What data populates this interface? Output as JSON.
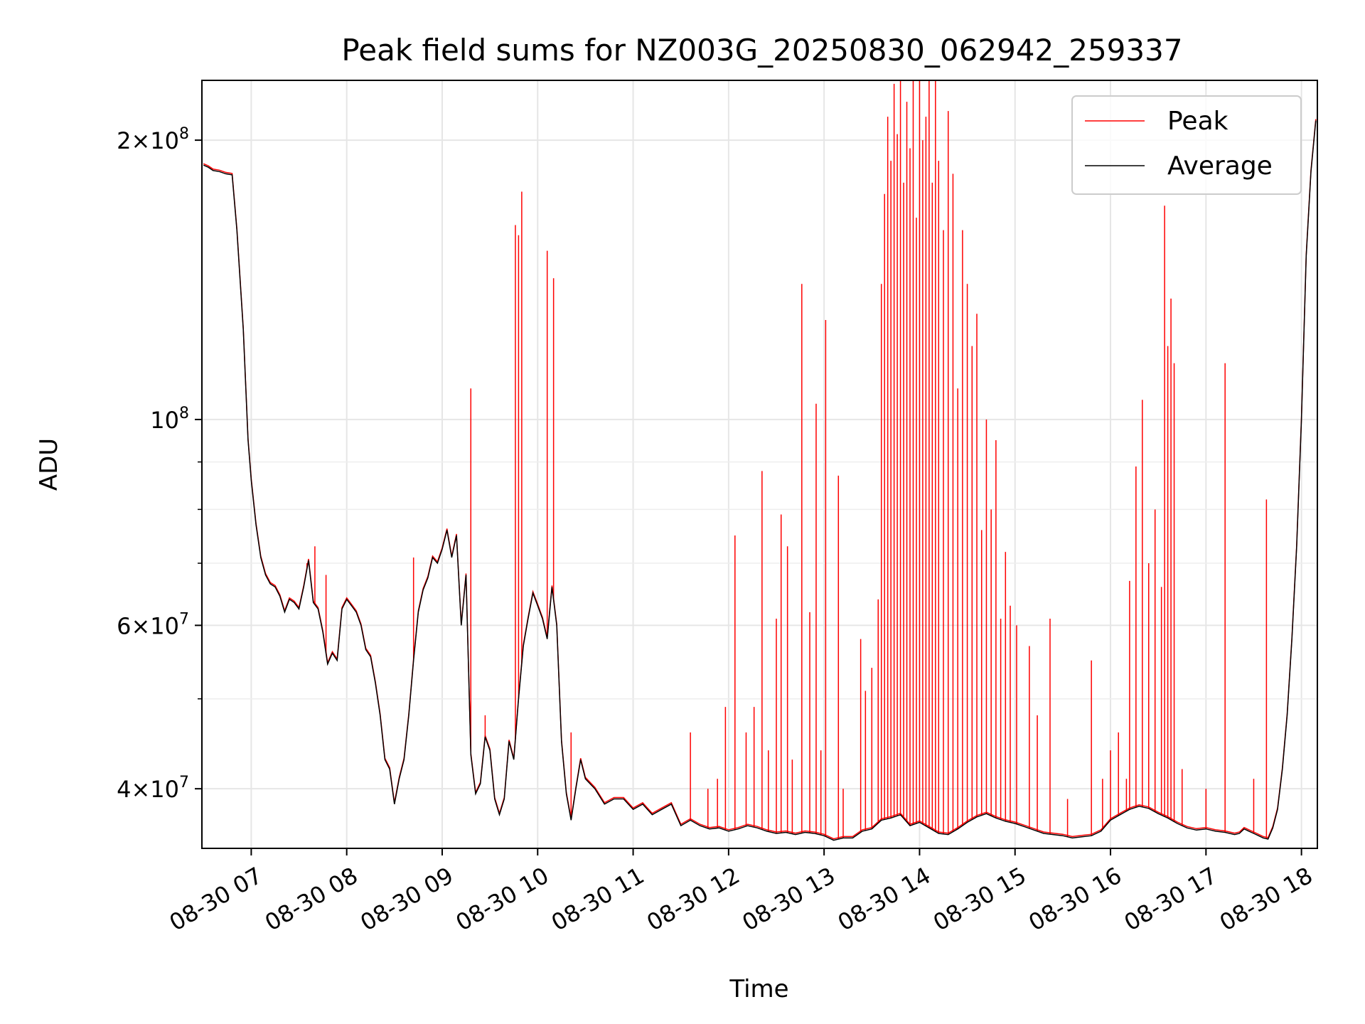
{
  "chart_data": {
    "type": "line",
    "title": "Peak field sums for NZ003G_20250830_062942_259337",
    "xlabel": "Time",
    "ylabel": "ADU",
    "y_scale": "log",
    "grid": true,
    "legend_position": "upper right",
    "xlim": [
      "2025-08-30 06:29",
      "2025-08-30 18:10"
    ],
    "ylim": [
      34500000,
      232000000
    ],
    "x_ticks": [
      "08-30 07",
      "08-30 08",
      "08-30 09",
      "08-30 10",
      "08-30 11",
      "08-30 12",
      "08-30 13",
      "08-30 14",
      "08-30 15",
      "08-30 16",
      "08-30 17",
      "08-30 18"
    ],
    "y_tick_labels": [
      {
        "value": 200000000,
        "mantissa": "2",
        "exp": "8"
      },
      {
        "value": 100000000,
        "mantissa": "",
        "exp": "8"
      },
      {
        "value": 60000000,
        "mantissa": "6",
        "exp": "7"
      },
      {
        "value": 40000000,
        "mantissa": "4",
        "exp": "7"
      }
    ],
    "y_minor_ticks": [
      50000000,
      70000000,
      80000000,
      90000000
    ],
    "series": [
      {
        "name": "Average",
        "color": "#000000",
        "x": [
          "06:30",
          "06:33",
          "06:36",
          "06:40",
          "06:44",
          "06:48",
          "06:51",
          "06:55",
          "06:58",
          "07:00",
          "07:03",
          "07:06",
          "07:09",
          "07:12",
          "07:15",
          "07:18",
          "07:21",
          "07:24",
          "07:27",
          "07:30",
          "07:33",
          "07:36",
          "07:39",
          "07:42",
          "07:45",
          "07:48",
          "07:51",
          "07:54",
          "07:57",
          "08:00",
          "08:03",
          "08:06",
          "08:09",
          "08:12",
          "08:15",
          "08:18",
          "08:21",
          "08:24",
          "08:27",
          "08:30",
          "08:33",
          "08:36",
          "08:39",
          "08:42",
          "08:45",
          "08:48",
          "08:51",
          "08:54",
          "08:57",
          "09:00",
          "09:03",
          "09:06",
          "09:09",
          "09:12",
          "09:15",
          "09:18",
          "09:21",
          "09:24",
          "09:27",
          "09:30",
          "09:33",
          "09:36",
          "09:39",
          "09:42",
          "09:45",
          "09:48",
          "09:51",
          "09:54",
          "09:57",
          "10:00",
          "10:03",
          "10:06",
          "10:09",
          "10:12",
          "10:15",
          "10:18",
          "10:21",
          "10:24",
          "10:27",
          "10:30",
          "10:36",
          "10:42",
          "10:48",
          "10:54",
          "11:00",
          "11:06",
          "11:12",
          "11:18",
          "11:24",
          "11:30",
          "11:36",
          "11:42",
          "11:48",
          "11:54",
          "12:00",
          "12:06",
          "12:12",
          "12:18",
          "12:24",
          "12:30",
          "12:36",
          "12:42",
          "12:48",
          "12:54",
          "13:00",
          "13:06",
          "13:12",
          "13:18",
          "13:24",
          "13:30",
          "13:36",
          "13:42",
          "13:48",
          "13:54",
          "14:00",
          "14:06",
          "14:12",
          "14:18",
          "14:24",
          "14:30",
          "14:36",
          "14:42",
          "14:48",
          "14:54",
          "15:00",
          "15:06",
          "15:12",
          "15:18",
          "15:24",
          "15:30",
          "15:36",
          "15:42",
          "15:48",
          "15:54",
          "16:00",
          "16:06",
          "16:12",
          "16:18",
          "16:24",
          "16:30",
          "16:36",
          "16:42",
          "16:48",
          "16:54",
          "17:00",
          "17:06",
          "17:12",
          "17:18",
          "17:21",
          "17:24",
          "17:27",
          "17:30",
          "17:33",
          "17:36",
          "17:39",
          "17:42",
          "17:45",
          "17:48",
          "17:51",
          "17:54",
          "17:57",
          "18:00",
          "18:03",
          "18:06",
          "18:09"
        ],
        "y": [
          188000000,
          187000000,
          185500000,
          185000000,
          184000000,
          183500000,
          160000000,
          125000000,
          95000000,
          86000000,
          77000000,
          71000000,
          68000000,
          66500000,
          66000000,
          64500000,
          62000000,
          64000000,
          63500000,
          62500000,
          66000000,
          70500000,
          63500000,
          62500000,
          59000000,
          54500000,
          56000000,
          55000000,
          62500000,
          64000000,
          63000000,
          62000000,
          60000000,
          56500000,
          55500000,
          52000000,
          48000000,
          43000000,
          42000000,
          38500000,
          41000000,
          43000000,
          48000000,
          55000000,
          62000000,
          65500000,
          67500000,
          71000000,
          70000000,
          72500000,
          76000000,
          71000000,
          75000000,
          60000000,
          68000000,
          43500000,
          39500000,
          40500000,
          45500000,
          44000000,
          39000000,
          37500000,
          39000000,
          45000000,
          43000000,
          50000000,
          57000000,
          61000000,
          65000000,
          63000000,
          61000000,
          58000000,
          66000000,
          60000000,
          45000000,
          39500000,
          37000000,
          40000000,
          43000000,
          41000000,
          40000000,
          38500000,
          39000000,
          39000000,
          38000000,
          38500000,
          37500000,
          38000000,
          38500000,
          36500000,
          37000000,
          36500000,
          36200000,
          36300000,
          36000000,
          36200000,
          36500000,
          36300000,
          36000000,
          35800000,
          35900000,
          35700000,
          35900000,
          35800000,
          35600000,
          35200000,
          35400000,
          35400000,
          36000000,
          36200000,
          37000000,
          37200000,
          37500000,
          36500000,
          36800000,
          36300000,
          35800000,
          35700000,
          36200000,
          36800000,
          37300000,
          37600000,
          37200000,
          36900000,
          36700000,
          36400000,
          36100000,
          35800000,
          35700000,
          35600000,
          35400000,
          35500000,
          35600000,
          36000000,
          37000000,
          37500000,
          38000000,
          38300000,
          38100000,
          37600000,
          37200000,
          36700000,
          36300000,
          36100000,
          36200000,
          36000000,
          35900000,
          35700000,
          35800000,
          36200000,
          36000000,
          35800000,
          35600000,
          35400000,
          35300000,
          36300000,
          38000000,
          42000000,
          48000000,
          58000000,
          73000000,
          100000000,
          150000000,
          185000000,
          210000000
        ]
      },
      {
        "name": "Peak",
        "color": "#ff0000",
        "spikes": [
          [
            "07:35",
            70000000
          ],
          [
            "07:40",
            73000000
          ],
          [
            "07:47",
            68000000
          ],
          [
            "08:42",
            71000000
          ],
          [
            "09:08",
            74000000
          ],
          [
            "09:18",
            108000000
          ],
          [
            "09:27",
            48000000
          ],
          [
            "09:46",
            162000000
          ],
          [
            "09:48",
            158000000
          ],
          [
            "09:50",
            176000000
          ],
          [
            "10:06",
            152000000
          ],
          [
            "10:10",
            142000000
          ],
          [
            "10:21",
            46000000
          ],
          [
            "11:36",
            46000000
          ],
          [
            "11:47",
            40000000
          ],
          [
            "11:53",
            41000000
          ],
          [
            "11:58",
            49000000
          ],
          [
            "12:04",
            75000000
          ],
          [
            "12:11",
            46000000
          ],
          [
            "12:16",
            49000000
          ],
          [
            "12:21",
            88000000
          ],
          [
            "12:25",
            44000000
          ],
          [
            "12:30",
            61000000
          ],
          [
            "12:33",
            79000000
          ],
          [
            "12:37",
            73000000
          ],
          [
            "12:40",
            43000000
          ],
          [
            "12:46",
            140000000
          ],
          [
            "12:51",
            62000000
          ],
          [
            "12:55",
            104000000
          ],
          [
            "12:58",
            44000000
          ],
          [
            "13:01",
            128000000
          ],
          [
            "13:09",
            87000000
          ],
          [
            "13:12",
            40000000
          ],
          [
            "13:23",
            58000000
          ],
          [
            "13:26",
            51000000
          ],
          [
            "13:30",
            54000000
          ],
          [
            "13:34",
            64000000
          ],
          [
            "13:36",
            140000000
          ],
          [
            "13:38",
            175000000
          ],
          [
            "13:40",
            212000000
          ],
          [
            "13:42",
            190000000
          ],
          [
            "13:44",
            230000000
          ],
          [
            "13:46",
            203000000
          ],
          [
            "13:48",
            232000000
          ],
          [
            "13:50",
            180000000
          ],
          [
            "13:52",
            220000000
          ],
          [
            "13:54",
            196000000
          ],
          [
            "13:56",
            232000000
          ],
          [
            "13:58",
            165000000
          ],
          [
            "14:00",
            232000000
          ],
          [
            "14:02",
            200000000
          ],
          [
            "14:04",
            212000000
          ],
          [
            "14:06",
            232000000
          ],
          [
            "14:08",
            180000000
          ],
          [
            "14:10",
            232000000
          ],
          [
            "14:12",
            190000000
          ],
          [
            "14:15",
            160000000
          ],
          [
            "14:18",
            215000000
          ],
          [
            "14:21",
            184000000
          ],
          [
            "14:24",
            108000000
          ],
          [
            "14:27",
            160000000
          ],
          [
            "14:30",
            140000000
          ],
          [
            "14:33",
            120000000
          ],
          [
            "14:36",
            130000000
          ],
          [
            "14:39",
            76000000
          ],
          [
            "14:42",
            100000000
          ],
          [
            "14:45",
            80000000
          ],
          [
            "14:48",
            95000000
          ],
          [
            "14:51",
            61000000
          ],
          [
            "14:54",
            72000000
          ],
          [
            "14:57",
            63000000
          ],
          [
            "15:01",
            60000000
          ],
          [
            "15:09",
            57000000
          ],
          [
            "15:14",
            48000000
          ],
          [
            "15:22",
            61000000
          ],
          [
            "15:33",
            39000000
          ],
          [
            "15:48",
            55000000
          ],
          [
            "15:55",
            41000000
          ],
          [
            "16:00",
            44000000
          ],
          [
            "16:05",
            46000000
          ],
          [
            "16:10",
            41000000
          ],
          [
            "16:12",
            67000000
          ],
          [
            "16:16",
            89000000
          ],
          [
            "16:20",
            105000000
          ],
          [
            "16:24",
            70000000
          ],
          [
            "16:28",
            80000000
          ],
          [
            "16:32",
            66000000
          ],
          [
            "16:34",
            170000000
          ],
          [
            "16:36",
            120000000
          ],
          [
            "16:38",
            135000000
          ],
          [
            "16:40",
            115000000
          ],
          [
            "16:45",
            42000000
          ],
          [
            "17:00",
            40000000
          ],
          [
            "17:12",
            115000000
          ],
          [
            "17:30",
            41000000
          ],
          [
            "17:38",
            82000000
          ]
        ]
      }
    ]
  }
}
